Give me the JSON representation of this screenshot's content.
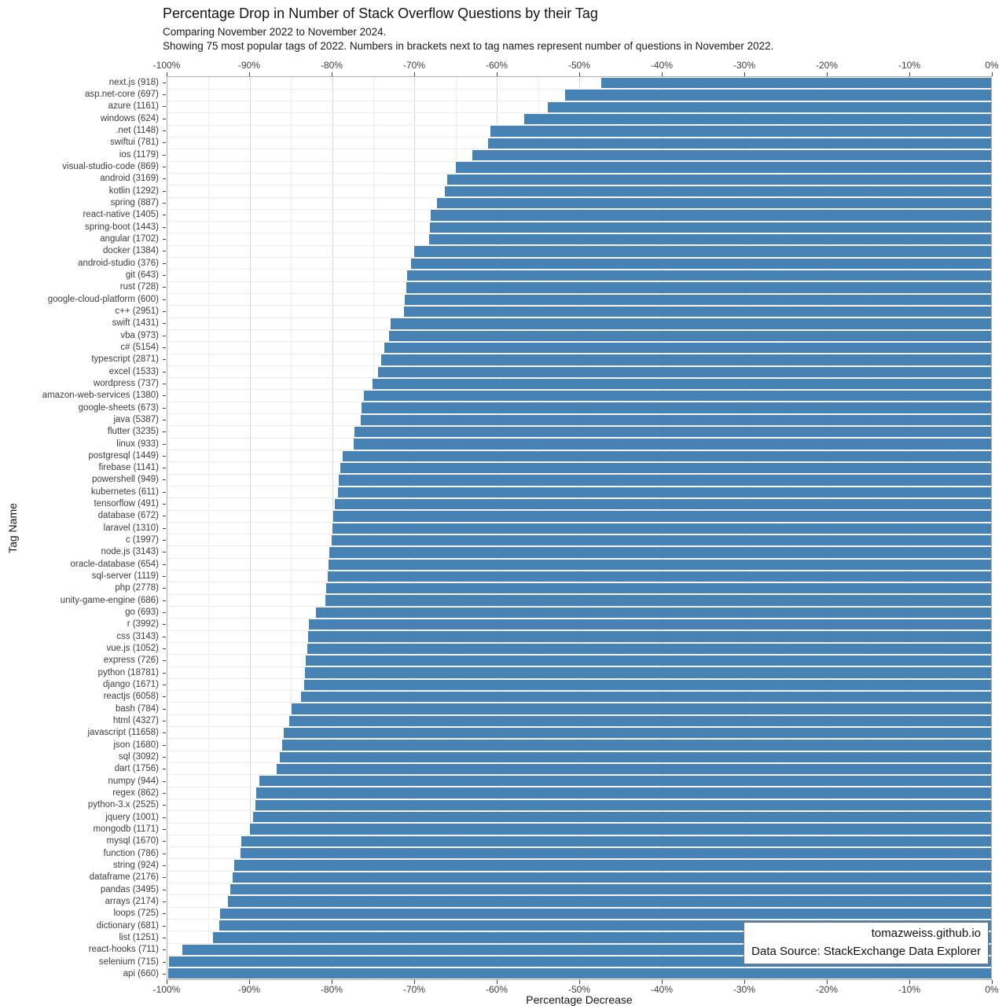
{
  "chart_data": {
    "type": "bar",
    "orientation": "horizontal",
    "title": "Percentage Drop in Number of Stack Overflow Questions by their Tag",
    "subtitle1": "Comparing November 2022 to November 2024.",
    "subtitle2": "Showing 75 most popular tags of 2022. Numbers in brackets next to tag names represent number of questions in November 2022.",
    "xlabel": "Percentage Decrease",
    "ylabel": "Tag Name",
    "xlim": [
      -100,
      0
    ],
    "x_ticks": [
      "-100%",
      "-90%",
      "-80%",
      "-70%",
      "-60%",
      "-50%",
      "-40%",
      "-30%",
      "-20%",
      "-10%",
      "0%"
    ],
    "grid": true,
    "bar_color": "#4682B4",
    "categories": [
      "next.js (918)",
      "asp.net-core (697)",
      "azure (1161)",
      "windows (624)",
      ".net (1148)",
      "swiftui (781)",
      "ios (1179)",
      "visual-studio-code (869)",
      "android (3169)",
      "kotlin (1292)",
      "spring (887)",
      "react-native (1405)",
      "spring-boot (1443)",
      "angular (1702)",
      "docker (1384)",
      "android-studio (376)",
      "git (643)",
      "rust (728)",
      "google-cloud-platform (600)",
      "c++ (2951)",
      "swift (1431)",
      "vba (973)",
      "c# (5154)",
      "typescript (2871)",
      "excel (1533)",
      "wordpress (737)",
      "amazon-web-services (1380)",
      "google-sheets (673)",
      "java (5387)",
      "flutter (3235)",
      "linux (933)",
      "postgresql (1449)",
      "firebase (1141)",
      "powershell (949)",
      "kubernetes (611)",
      "tensorflow (491)",
      "database (672)",
      "laravel (1310)",
      "c (1997)",
      "node.js (3143)",
      "oracle-database (654)",
      "sql-server (1119)",
      "php (2778)",
      "unity-game-engine (686)",
      "go (693)",
      "r (3992)",
      "css (3143)",
      "vue.js (1052)",
      "express (726)",
      "python (18781)",
      "django (1671)",
      "reactjs (6058)",
      "bash (784)",
      "html (4327)",
      "javascript (11658)",
      "json (1680)",
      "sql (3092)",
      "dart (1756)",
      "numpy (944)",
      "regex (862)",
      "python-3.x (2525)",
      "jquery (1001)",
      "mongodb (1171)",
      "mysql (1670)",
      "function (786)",
      "string (924)",
      "dataframe (2176)",
      "pandas (3495)",
      "arrays (2174)",
      "loops (725)",
      "dictionary (681)",
      "list (1251)",
      "react-hooks (711)",
      "selenium (715)",
      "api (660)"
    ],
    "values": [
      -47.3,
      -51.7,
      -53.8,
      -56.7,
      -60.8,
      -61.1,
      -63.0,
      -65.0,
      -66.0,
      -66.3,
      -67.3,
      -68.0,
      -68.1,
      -68.2,
      -70.0,
      -70.4,
      -70.9,
      -71.0,
      -71.2,
      -71.3,
      -72.9,
      -73.1,
      -73.7,
      -74.0,
      -74.4,
      -75.1,
      -76.1,
      -76.4,
      -76.5,
      -77.3,
      -77.4,
      -78.7,
      -79.0,
      -79.2,
      -79.3,
      -79.7,
      -79.9,
      -80.0,
      -80.1,
      -80.3,
      -80.4,
      -80.5,
      -80.7,
      -80.8,
      -82.0,
      -82.8,
      -82.9,
      -83.0,
      -83.2,
      -83.3,
      -83.4,
      -83.8,
      -84.9,
      -85.2,
      -85.9,
      -86.1,
      -86.4,
      -86.7,
      -88.8,
      -89.2,
      -89.3,
      -89.6,
      -90.0,
      -91.0,
      -91.1,
      -91.9,
      -92.1,
      -92.4,
      -92.7,
      -93.6,
      -93.7,
      -94.5,
      -98.2,
      -99.8,
      -99.9
    ],
    "annotation": {
      "line1": "tomazweiss.github.io",
      "line2": "Data Source: StackExchange Data Explorer"
    },
    "legend": "none"
  }
}
